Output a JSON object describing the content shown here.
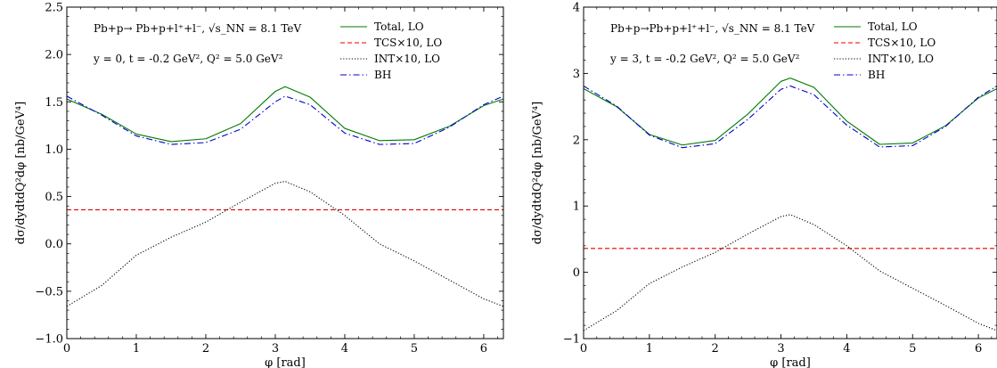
{
  "chart_data": [
    {
      "type": "line",
      "xlabel": "φ [rad]",
      "ylabel": "dσ/dydtdQ²dφ [nb/GeV⁴]",
      "xlim": [
        0,
        6.283
      ],
      "ylim": [
        -1.0,
        2.5
      ],
      "xticks": [
        0,
        1,
        2,
        3,
        4,
        5,
        6
      ],
      "yticks": [
        -1.0,
        -0.5,
        0.0,
        0.5,
        1.0,
        1.5,
        2.0,
        2.5
      ],
      "ytick_labels": [
        "−1.0",
        "−0.5",
        "0.0",
        "0.5",
        "1.0",
        "1.5",
        "2.0",
        "2.5"
      ],
      "annotations": [
        "Pb+p→ Pb+p+l⁺+l⁻, √s_NN = 8.1 TeV",
        "y = 0, t = -0.2 GeV², Q² = 5.0 GeV²"
      ],
      "legend_position": "top-right",
      "grid": false,
      "x": [
        0,
        0.5,
        1,
        1.5,
        2,
        2.5,
        3,
        3.1416,
        3.5,
        4,
        4.5,
        5,
        5.5,
        6,
        6.283
      ],
      "series": [
        {
          "name": "Total, LO",
          "color": "#007a00",
          "dash": "solid",
          "values": [
            1.53,
            1.37,
            1.16,
            1.08,
            1.11,
            1.27,
            1.61,
            1.66,
            1.55,
            1.22,
            1.09,
            1.1,
            1.24,
            1.46,
            1.53
          ]
        },
        {
          "name": "TCS×10, LO",
          "color": "#e00000",
          "dash": "dashed",
          "values": [
            0.36,
            0.36,
            0.36,
            0.36,
            0.36,
            0.36,
            0.36,
            0.36,
            0.36,
            0.36,
            0.36,
            0.36,
            0.36,
            0.36,
            0.36
          ]
        },
        {
          "name": "INT×10, LO",
          "color": "#000000",
          "dash": "dotted",
          "values": [
            -0.66,
            -0.44,
            -0.12,
            0.07,
            0.23,
            0.44,
            0.64,
            0.66,
            0.55,
            0.3,
            0.0,
            -0.18,
            -0.38,
            -0.58,
            -0.66
          ]
        },
        {
          "name": "BH",
          "color": "#0000d0",
          "dash": "dashdot",
          "values": [
            1.56,
            1.36,
            1.14,
            1.05,
            1.07,
            1.21,
            1.5,
            1.56,
            1.47,
            1.17,
            1.05,
            1.06,
            1.23,
            1.47,
            1.56
          ]
        }
      ]
    },
    {
      "type": "line",
      "xlabel": "φ [rad]",
      "ylabel": "dσ/dydtdQ²dφ [nb/GeV⁴]",
      "xlim": [
        0,
        6.283
      ],
      "ylim": [
        -1,
        4
      ],
      "xticks": [
        0,
        1,
        2,
        3,
        4,
        5,
        6
      ],
      "yticks": [
        -1,
        0,
        1,
        2,
        3,
        4
      ],
      "ytick_labels": [
        "−1",
        "0",
        "1",
        "2",
        "3",
        "4"
      ],
      "annotations": [
        "Pb+p→Pb+p+l⁺+l⁻, √s_NN = 8.1 TeV",
        "y = 3, t = -0.2 GeV², Q² = 5.0 GeV²"
      ],
      "legend_position": "top-right",
      "grid": false,
      "x": [
        0,
        0.5,
        1,
        1.5,
        2,
        2.5,
        3,
        3.1416,
        3.5,
        4,
        4.5,
        5,
        5.5,
        6,
        6.283
      ],
      "series": [
        {
          "name": "Total, LO",
          "color": "#007a00",
          "dash": "solid",
          "values": [
            2.77,
            2.5,
            2.08,
            1.92,
            1.99,
            2.39,
            2.88,
            2.93,
            2.79,
            2.28,
            1.93,
            1.95,
            2.21,
            2.63,
            2.77
          ]
        },
        {
          "name": "TCS×10, LO",
          "color": "#e00000",
          "dash": "dashed",
          "values": [
            0.36,
            0.36,
            0.36,
            0.36,
            0.36,
            0.36,
            0.36,
            0.36,
            0.36,
            0.36,
            0.36,
            0.36,
            0.36,
            0.36,
            0.36
          ]
        },
        {
          "name": "INT×10, LO",
          "color": "#000000",
          "dash": "dotted",
          "values": [
            -0.88,
            -0.58,
            -0.17,
            0.08,
            0.3,
            0.58,
            0.84,
            0.87,
            0.72,
            0.4,
            0.02,
            -0.24,
            -0.5,
            -0.77,
            -0.88
          ]
        },
        {
          "name": "BH",
          "color": "#0000d0",
          "dash": "dashdot",
          "values": [
            2.81,
            2.51,
            2.07,
            1.88,
            1.94,
            2.31,
            2.76,
            2.81,
            2.68,
            2.22,
            1.89,
            1.91,
            2.2,
            2.64,
            2.81
          ]
        }
      ]
    }
  ]
}
